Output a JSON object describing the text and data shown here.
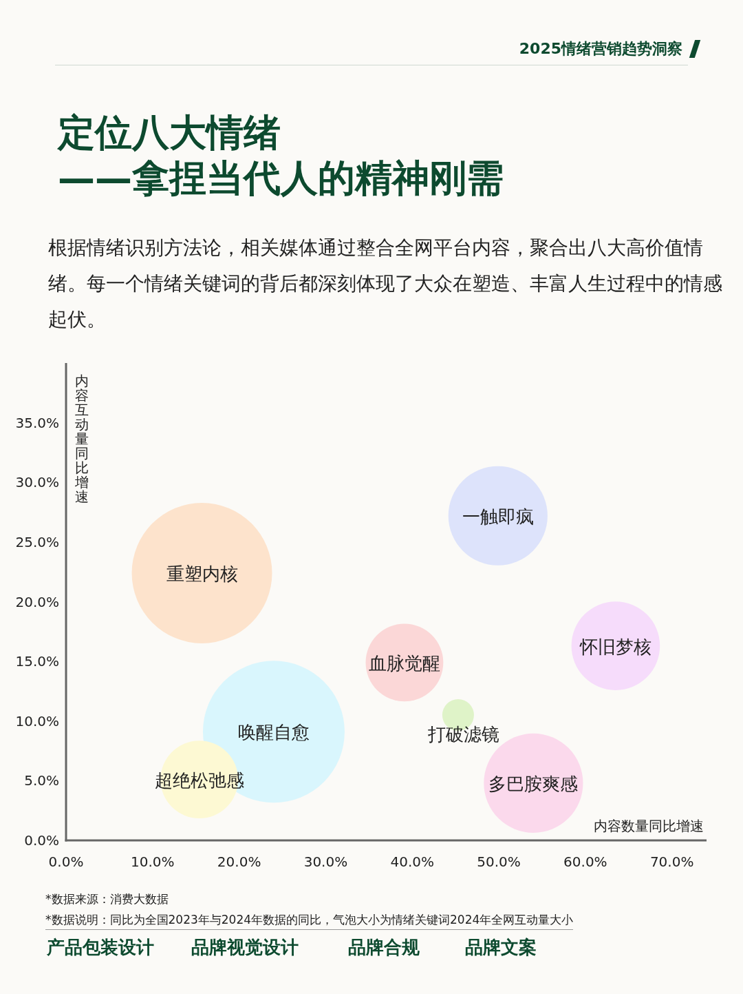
{
  "chart_data": {
    "type": "bubble",
    "title": "定位八大情绪\n——拿捏当代人的精神刚需",
    "subtitle": "根据情绪识别方法论，相关媒体通过整合全网平台内容，聚合出八大高价值情绪。每一个情绪关键词的背后都深刻体现了大众在塑造、丰富人生过程中的情感起伏。",
    "xlabel": "内容数量同比增速",
    "ylabel": "内容互动量同比增速",
    "xlim": [
      0,
      74
    ],
    "ylim": [
      0,
      40
    ],
    "xticks": [
      {
        "value": 0,
        "label": "0.0%"
      },
      {
        "value": 10,
        "label": "10.0%"
      },
      {
        "value": 20,
        "label": "20.0%"
      },
      {
        "value": 30,
        "label": "30.0%"
      },
      {
        "value": 40,
        "label": "40.0%"
      },
      {
        "value": 50,
        "label": "50.0%"
      },
      {
        "value": 60,
        "label": "60.0%"
      },
      {
        "value": 70,
        "label": "70.0%"
      }
    ],
    "yticks": [
      {
        "value": 0,
        "label": "0.0%"
      },
      {
        "value": 5,
        "label": "5.0%"
      },
      {
        "value": 10,
        "label": "10.0%"
      },
      {
        "value": 15,
        "label": "15.0%"
      },
      {
        "value": 20,
        "label": "20.0%"
      },
      {
        "value": 25,
        "label": "25.0%"
      },
      {
        "value": 30,
        "label": "30.0%"
      },
      {
        "value": 35,
        "label": "35.0%"
      }
    ],
    "grid": false,
    "legend": false,
    "series": [
      {
        "name": "重塑内核",
        "color": "#fde3cc",
        "x": [
          15.7
        ],
        "values": [
          22.4
        ],
        "sizes": [
          0.98
        ]
      },
      {
        "name": "一触即疯",
        "color": "#dde3fb",
        "x": [
          49.9
        ],
        "values": [
          27.2
        ],
        "sizes": [
          0.49
        ]
      },
      {
        "name": "怀旧梦核",
        "color": "#f6dcfb",
        "x": [
          63.5
        ],
        "values": [
          16.3
        ],
        "sizes": [
          0.39
        ]
      },
      {
        "name": "血脉觉醒",
        "color": "#fbd7d7",
        "x": [
          39.1
        ],
        "values": [
          14.9
        ],
        "sizes": [
          0.3
        ]
      },
      {
        "name": "打破滤镜",
        "color": "#dff3c8",
        "x": [
          45.3
        ],
        "values": [
          10.5
        ],
        "sizes": [
          0.05
        ]
      },
      {
        "name": "唤醒自愈",
        "color": "#d9f6fd",
        "x": [
          24.0
        ],
        "values": [
          9.1
        ],
        "sizes": [
          1
        ]
      },
      {
        "name": "超绝松弛感",
        "color": "#fdf9d3",
        "x": [
          15.4
        ],
        "values": [
          5.1
        ],
        "sizes": [
          0.3
        ]
      },
      {
        "name": "多巴胺爽感",
        "color": "#fbd9ec",
        "x": [
          54.0
        ],
        "values": [
          4.8
        ],
        "sizes": [
          0.49
        ]
      }
    ],
    "annotations": [
      "2025情绪营销趋势洞察",
      "*数据来源：消费大数据",
      "*数据说明：同比为全国2023年与2024年数据的同比，气泡大小为情绪关键词2024年全网互动量大小",
      "产品包装设计",
      "品牌视觉设计",
      "品牌合规",
      "品牌文案"
    ]
  }
}
